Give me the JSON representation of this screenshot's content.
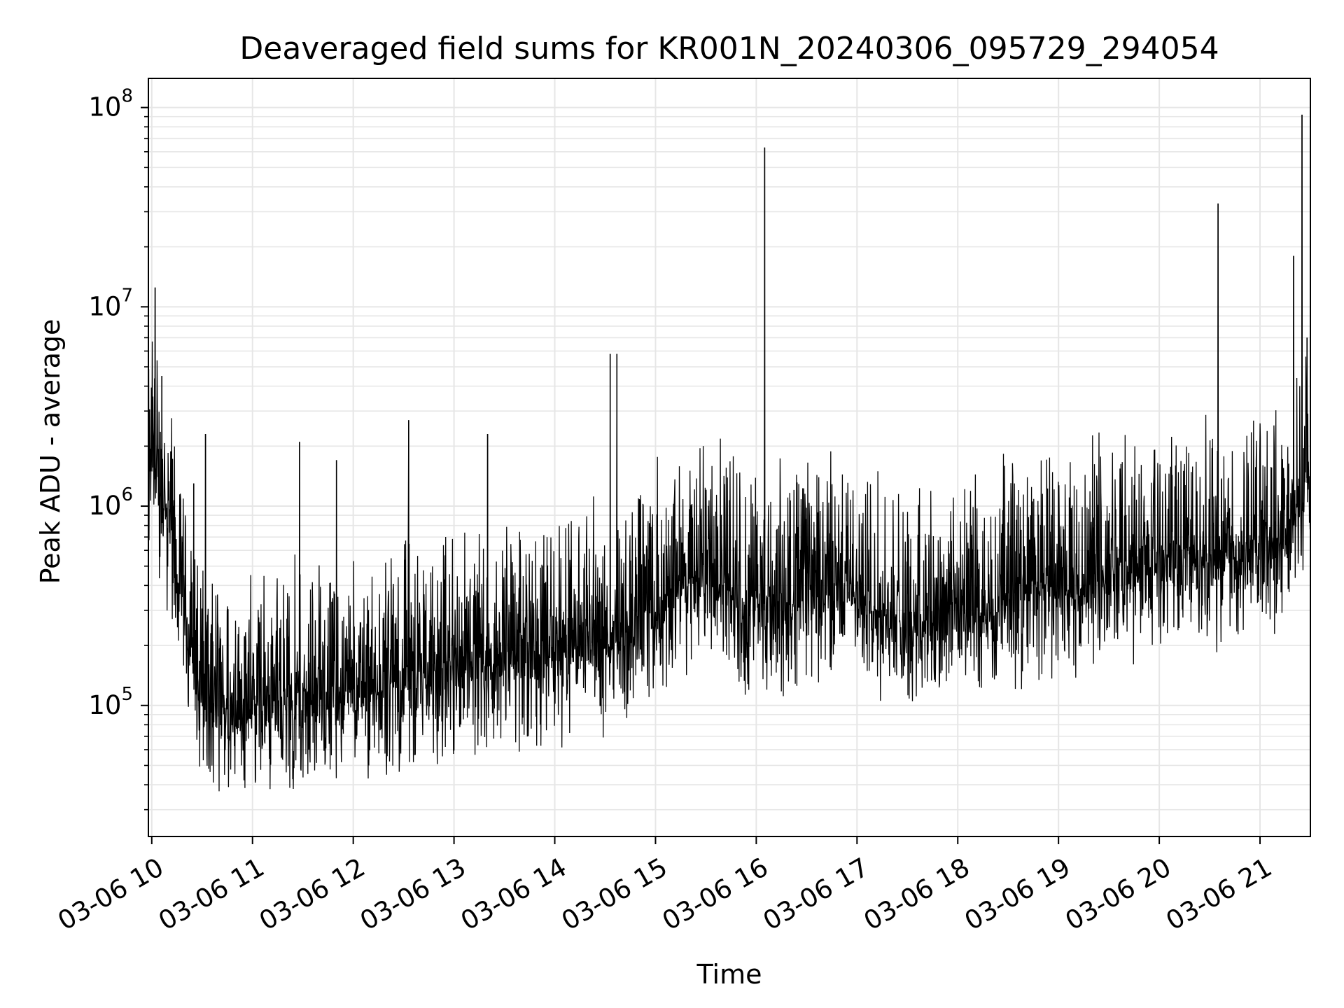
{
  "chart_data": {
    "type": "line",
    "title": "Deaveraged field sums for KR001N_20240306_095729_294054",
    "xlabel": "Time",
    "ylabel": "Peak ADU - average",
    "yscale": "log",
    "ylim": [
      22000,
      140000000
    ],
    "xlim": [
      "2024-03-06 09:58",
      "2024-03-06 21:30"
    ],
    "grid": true,
    "line_color": "#000000",
    "grid_color": "#e6e6e6",
    "x_ticks": [
      "03-06 10",
      "03-06 11",
      "03-06 12",
      "03-06 13",
      "03-06 14",
      "03-06 15",
      "03-06 16",
      "03-06 17",
      "03-06 18",
      "03-06 19",
      "03-06 20",
      "03-06 21"
    ],
    "y_ticks": [
      {
        "value": 100000,
        "base": "10",
        "exp": "5"
      },
      {
        "value": 1000000,
        "base": "10",
        "exp": "6"
      },
      {
        "value": 10000000,
        "base": "10",
        "exp": "7"
      },
      {
        "value": 100000000,
        "base": "10",
        "exp": "8"
      }
    ],
    "series": [
      {
        "x": [
          "2024-03-06 09:58",
          "2024-03-06 10:00",
          "2024-03-06 10:03",
          "2024-03-06 10:05",
          "2024-03-06 10:08",
          "2024-03-06 10:12",
          "2024-03-06 10:15",
          "2024-03-06 10:20",
          "2024-03-06 10:25",
          "2024-03-06 10:30",
          "2024-03-06 10:35",
          "2024-03-06 10:40",
          "2024-03-06 10:45",
          "2024-03-06 10:50",
          "2024-03-06 11:00",
          "2024-03-06 11:10",
          "2024-03-06 11:20",
          "2024-03-06 11:30",
          "2024-03-06 11:40",
          "2024-03-06 11:50",
          "2024-03-06 12:00",
          "2024-03-06 12:15",
          "2024-03-06 12:30",
          "2024-03-06 12:45",
          "2024-03-06 13:00",
          "2024-03-06 13:15",
          "2024-03-06 13:30",
          "2024-03-06 13:45",
          "2024-03-06 14:00",
          "2024-03-06 14:15",
          "2024-03-06 14:30",
          "2024-03-06 14:45",
          "2024-03-06 15:00",
          "2024-03-06 15:10",
          "2024-03-06 15:20",
          "2024-03-06 15:30",
          "2024-03-06 15:40",
          "2024-03-06 15:50",
          "2024-03-06 16:00",
          "2024-03-06 16:10",
          "2024-03-06 16:20",
          "2024-03-06 16:30",
          "2024-03-06 16:45",
          "2024-03-06 17:00",
          "2024-03-06 17:10",
          "2024-03-06 17:20",
          "2024-03-06 17:30",
          "2024-03-06 17:40",
          "2024-03-06 17:50",
          "2024-03-06 18:00",
          "2024-03-06 18:10",
          "2024-03-06 18:20",
          "2024-03-06 18:30",
          "2024-03-06 18:45",
          "2024-03-06 19:00",
          "2024-03-06 19:10",
          "2024-03-06 19:20",
          "2024-03-06 19:30",
          "2024-03-06 19:45",
          "2024-03-06 20:00",
          "2024-03-06 20:15",
          "2024-03-06 20:30",
          "2024-03-06 20:45",
          "2024-03-06 21:00",
          "2024-03-06 21:10",
          "2024-03-06 21:20",
          "2024-03-06 21:30"
        ],
        "y": [
          1200000,
          1500000,
          1300000,
          1100000,
          900000,
          600000,
          400000,
          250000,
          150000,
          110000,
          95000,
          90000,
          92000,
          90000,
          95000,
          100000,
          100000,
          98000,
          100000,
          105000,
          110000,
          120000,
          130000,
          140000,
          150000,
          155000,
          160000,
          165000,
          175000,
          185000,
          200000,
          220000,
          280000,
          350000,
          400000,
          420000,
          380000,
          330000,
          300000,
          300000,
          320000,
          350000,
          370000,
          360000,
          300000,
          250000,
          240000,
          260000,
          300000,
          320000,
          280000,
          250000,
          330000,
          380000,
          390000,
          380000,
          400000,
          420000,
          450000,
          500000,
          530000,
          550000,
          560000,
          580000,
          600000,
          1000000,
          1400000
        ]
      }
    ],
    "spikes": [
      {
        "x": "2024-03-06 10:02",
        "y": 12500000
      },
      {
        "x": "2024-03-06 10:06",
        "y": 4500000
      },
      {
        "x": "2024-03-06 10:25",
        "y": 1300000
      },
      {
        "x": "2024-03-06 10:32",
        "y": 2300000
      },
      {
        "x": "2024-03-06 11:28",
        "y": 2100000
      },
      {
        "x": "2024-03-06 11:50",
        "y": 1700000
      },
      {
        "x": "2024-03-06 12:33",
        "y": 2700000
      },
      {
        "x": "2024-03-06 13:20",
        "y": 2300000
      },
      {
        "x": "2024-03-06 14:33",
        "y": 5800000
      },
      {
        "x": "2024-03-06 14:37",
        "y": 5800000
      },
      {
        "x": "2024-03-06 16:05",
        "y": 63000000
      },
      {
        "x": "2024-03-06 20:35",
        "y": 33000000
      },
      {
        "x": "2024-03-06 21:20",
        "y": 18000000
      },
      {
        "x": "2024-03-06 21:25",
        "y": 92000000
      },
      {
        "x": "2024-03-06 21:28",
        "y": 7000000
      }
    ]
  }
}
